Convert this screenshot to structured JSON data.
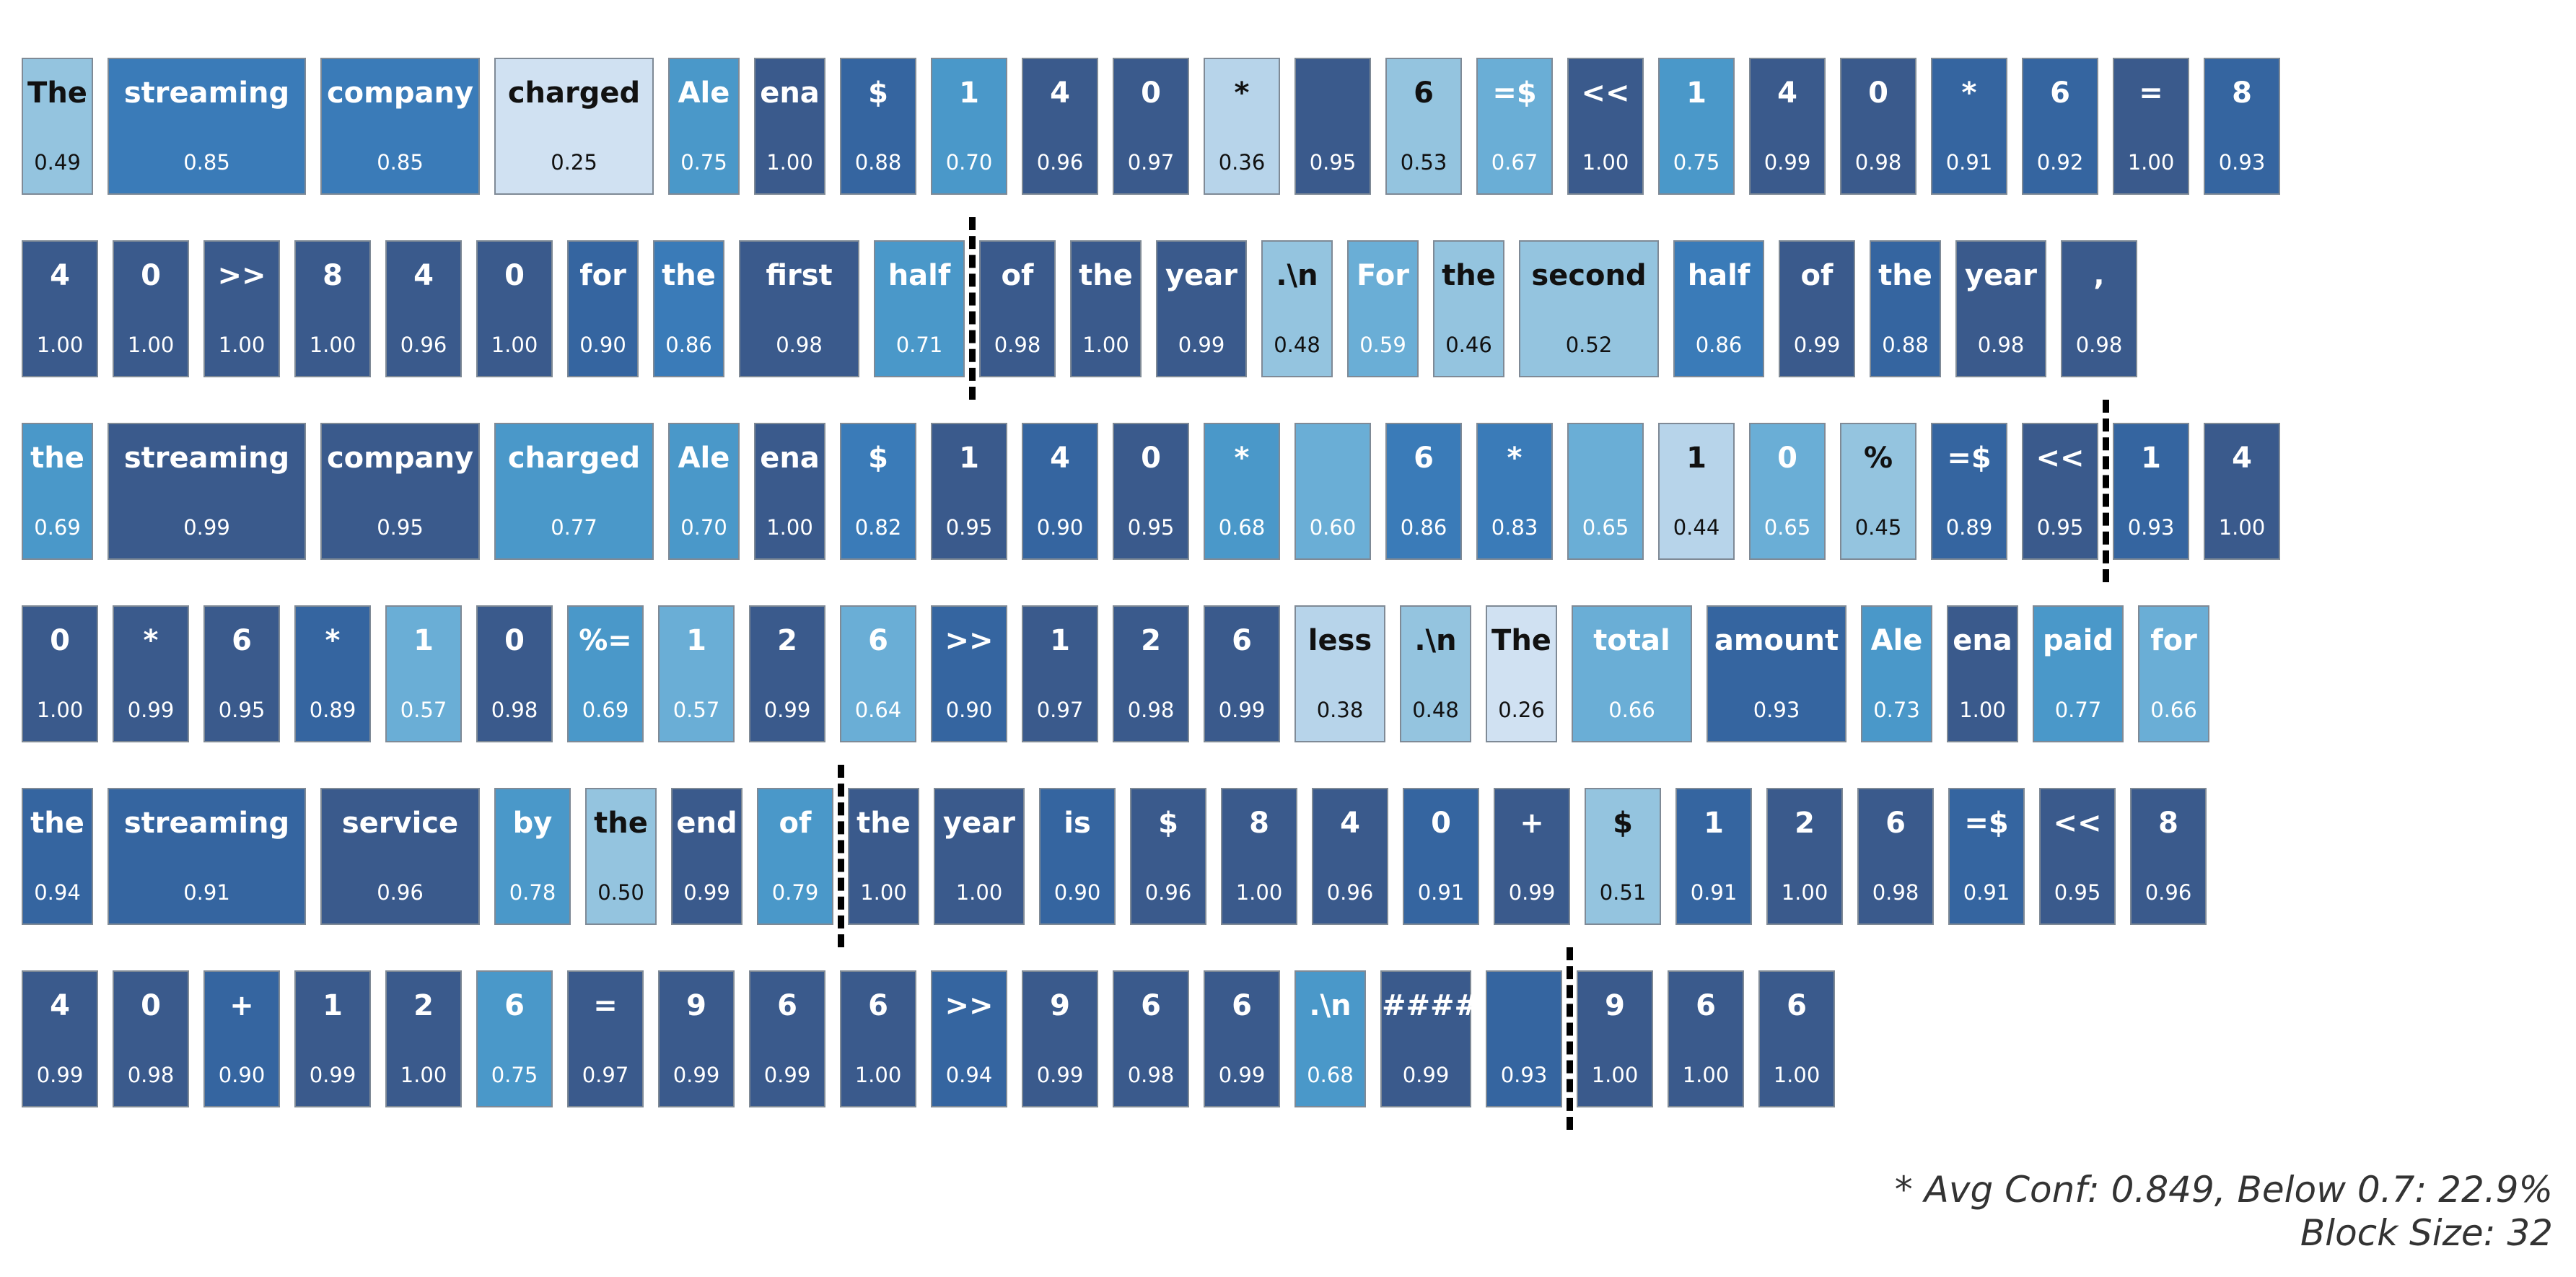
{
  "tokens": [
    [
      {
        "t": "The",
        "c": "0.49"
      },
      {
        "t": "streaming",
        "c": "0.85"
      },
      {
        "t": "company",
        "c": "0.85"
      },
      {
        "t": "charged",
        "c": "0.25"
      },
      {
        "t": "Ale",
        "c": "0.75"
      },
      {
        "t": "ena",
        "c": "1.00"
      },
      {
        "t": "$",
        "c": "0.88"
      },
      {
        "t": "1",
        "c": "0.70"
      },
      {
        "t": "4",
        "c": "0.96"
      },
      {
        "t": "0",
        "c": "0.97"
      },
      {
        "t": "*",
        "c": "0.36"
      },
      {
        "t": "",
        "c": "0.95"
      },
      {
        "t": "6",
        "c": "0.53"
      },
      {
        "t": "=$",
        "c": "0.67"
      },
      {
        "t": "<<",
        "c": "1.00"
      },
      {
        "t": "1",
        "c": "0.75"
      },
      {
        "t": "4",
        "c": "0.99"
      },
      {
        "t": "0",
        "c": "0.98"
      },
      {
        "t": "*",
        "c": "0.91"
      },
      {
        "t": "6",
        "c": "0.92"
      },
      {
        "t": "=",
        "c": "1.00"
      },
      {
        "t": "8",
        "c": "0.93"
      }
    ],
    [
      {
        "t": "4",
        "c": "1.00"
      },
      {
        "t": "0",
        "c": "1.00"
      },
      {
        "t": ">>",
        "c": "1.00"
      },
      {
        "t": "8",
        "c": "1.00"
      },
      {
        "t": "4",
        "c": "0.96"
      },
      {
        "t": "0",
        "c": "1.00"
      },
      {
        "t": "for",
        "c": "0.90"
      },
      {
        "t": "the",
        "c": "0.86"
      },
      {
        "t": "first",
        "c": "0.98"
      },
      {
        "t": "half",
        "c": "0.71"
      },
      {
        "t": "of",
        "c": "0.98"
      },
      {
        "t": "the",
        "c": "1.00"
      },
      {
        "t": "year",
        "c": "0.99"
      },
      {
        "t": ".\\n",
        "c": "0.48"
      },
      {
        "t": "For",
        "c": "0.59"
      },
      {
        "t": "the",
        "c": "0.46"
      },
      {
        "t": "second",
        "c": "0.52"
      },
      {
        "t": "half",
        "c": "0.86"
      },
      {
        "t": "of",
        "c": "0.99"
      },
      {
        "t": "the",
        "c": "0.88"
      },
      {
        "t": "year",
        "c": "0.98"
      },
      {
        "t": ",",
        "c": "0.98"
      }
    ],
    [
      {
        "t": "the",
        "c": "0.69"
      },
      {
        "t": "streaming",
        "c": "0.99"
      },
      {
        "t": "company",
        "c": "0.95"
      },
      {
        "t": "charged",
        "c": "0.77"
      },
      {
        "t": "Ale",
        "c": "0.70"
      },
      {
        "t": "ena",
        "c": "1.00"
      },
      {
        "t": "$",
        "c": "0.82"
      },
      {
        "t": "1",
        "c": "0.95"
      },
      {
        "t": "4",
        "c": "0.90"
      },
      {
        "t": "0",
        "c": "0.95"
      },
      {
        "t": "*",
        "c": "0.68"
      },
      {
        "t": "",
        "c": "0.60"
      },
      {
        "t": "6",
        "c": "0.86"
      },
      {
        "t": "*",
        "c": "0.83"
      },
      {
        "t": "",
        "c": "0.65"
      },
      {
        "t": "1",
        "c": "0.44"
      },
      {
        "t": "0",
        "c": "0.65"
      },
      {
        "t": "%",
        "c": "0.45"
      },
      {
        "t": "=$",
        "c": "0.89"
      },
      {
        "t": "<<",
        "c": "0.95"
      },
      {
        "t": "1",
        "c": "0.93"
      },
      {
        "t": "4",
        "c": "1.00"
      }
    ],
    [
      {
        "t": "0",
        "c": "1.00"
      },
      {
        "t": "*",
        "c": "0.99"
      },
      {
        "t": "6",
        "c": "0.95"
      },
      {
        "t": "*",
        "c": "0.89"
      },
      {
        "t": "1",
        "c": "0.57"
      },
      {
        "t": "0",
        "c": "0.98"
      },
      {
        "t": "%=",
        "c": "0.69"
      },
      {
        "t": "1",
        "c": "0.57"
      },
      {
        "t": "2",
        "c": "0.99"
      },
      {
        "t": "6",
        "c": "0.64"
      },
      {
        "t": ">>",
        "c": "0.90"
      },
      {
        "t": "1",
        "c": "0.97"
      },
      {
        "t": "2",
        "c": "0.98"
      },
      {
        "t": "6",
        "c": "0.99"
      },
      {
        "t": "less",
        "c": "0.38"
      },
      {
        "t": ".\\n",
        "c": "0.48"
      },
      {
        "t": "The",
        "c": "0.26"
      },
      {
        "t": "total",
        "c": "0.66"
      },
      {
        "t": "amount",
        "c": "0.93"
      },
      {
        "t": "Ale",
        "c": "0.73"
      },
      {
        "t": "ena",
        "c": "1.00"
      },
      {
        "t": "paid",
        "c": "0.77"
      },
      {
        "t": "for",
        "c": "0.66"
      }
    ],
    [
      {
        "t": "the",
        "c": "0.94"
      },
      {
        "t": "streaming",
        "c": "0.91"
      },
      {
        "t": "service",
        "c": "0.96"
      },
      {
        "t": "by",
        "c": "0.78"
      },
      {
        "t": "the",
        "c": "0.50"
      },
      {
        "t": "end",
        "c": "0.99"
      },
      {
        "t": "of",
        "c": "0.79"
      },
      {
        "t": "the",
        "c": "1.00"
      },
      {
        "t": "year",
        "c": "1.00"
      },
      {
        "t": "is",
        "c": "0.90"
      },
      {
        "t": "$",
        "c": "0.96"
      },
      {
        "t": "8",
        "c": "1.00"
      },
      {
        "t": "4",
        "c": "0.96"
      },
      {
        "t": "0",
        "c": "0.91"
      },
      {
        "t": "+",
        "c": "0.99"
      },
      {
        "t": "$",
        "c": "0.51"
      },
      {
        "t": "1",
        "c": "0.91"
      },
      {
        "t": "2",
        "c": "1.00"
      },
      {
        "t": "6",
        "c": "0.98"
      },
      {
        "t": "=$",
        "c": "0.91"
      },
      {
        "t": "<<",
        "c": "0.95"
      },
      {
        "t": "8",
        "c": "0.96"
      }
    ],
    [
      {
        "t": "4",
        "c": "0.99"
      },
      {
        "t": "0",
        "c": "0.98"
      },
      {
        "t": "+",
        "c": "0.90"
      },
      {
        "t": "1",
        "c": "0.99"
      },
      {
        "t": "2",
        "c": "1.00"
      },
      {
        "t": "6",
        "c": "0.75"
      },
      {
        "t": "=",
        "c": "0.97"
      },
      {
        "t": "9",
        "c": "0.99"
      },
      {
        "t": "6",
        "c": "0.99"
      },
      {
        "t": "6",
        "c": "1.00"
      },
      {
        "t": ">>",
        "c": "0.94"
      },
      {
        "t": "9",
        "c": "0.99"
      },
      {
        "t": "6",
        "c": "0.98"
      },
      {
        "t": "6",
        "c": "0.99"
      },
      {
        "t": ".\\n",
        "c": "0.68"
      },
      {
        "t": "####",
        "c": "0.99"
      },
      {
        "t": "",
        "c": "0.93"
      },
      {
        "t": "9",
        "c": "1.00"
      },
      {
        "t": "6",
        "c": "1.00"
      },
      {
        "t": "6",
        "c": "1.00"
      }
    ]
  ],
  "block_boundaries": [
    {
      "row": 1,
      "after_index": 9
    },
    {
      "row": 2,
      "after_index": 19
    },
    {
      "row": 4,
      "after_index": 6
    },
    {
      "row": 5,
      "after_index": 16
    }
  ],
  "footer": {
    "line1": "* Avg Conf: 0.849, Below 0.7: 22.9%",
    "line2": "Block Size: 32"
  },
  "colors": {
    "scale": [
      "#d0e1f2",
      "#b7d4ea",
      "#94c4df",
      "#6aaed6",
      "#4a98c9",
      "#3a7bb8",
      "#3565a0",
      "#3a5a8c"
    ],
    "border": "#7f8a96",
    "separator": "#000000"
  }
}
